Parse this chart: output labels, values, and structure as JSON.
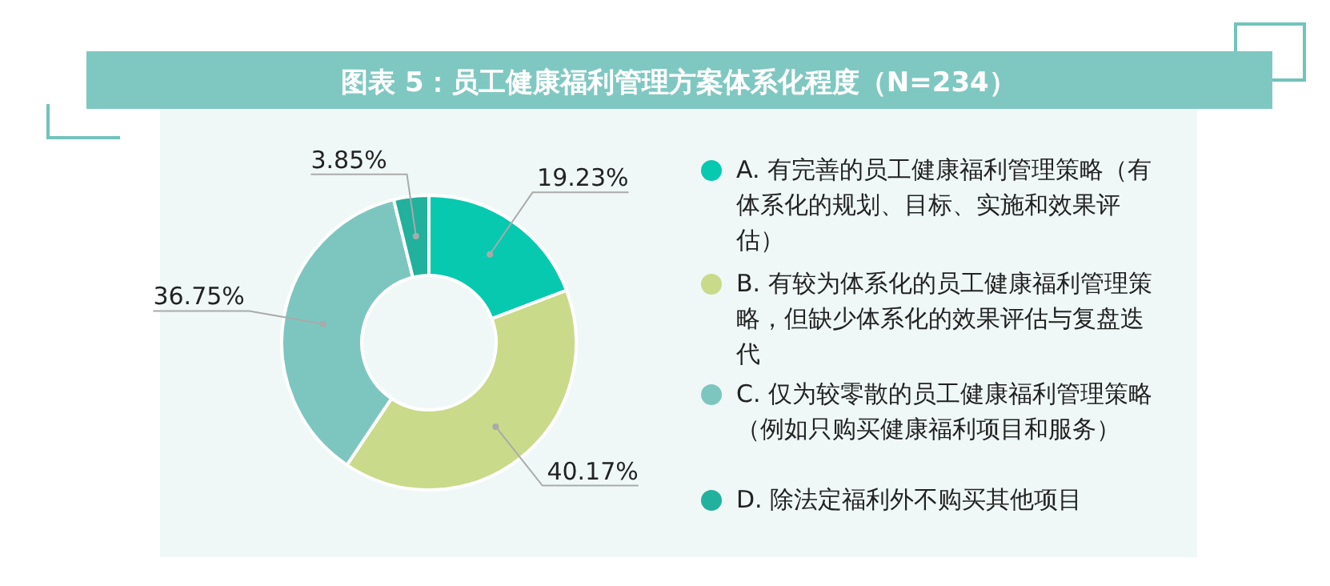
{
  "chart_data": {
    "type": "donut",
    "title": "图表 5：员工健康福利管理方案体系化程度（N=234）",
    "categories": [
      "A. 有完善的员工健康福利管理策略（有体系化的规划、目标、实施和效果评估）",
      "B. 有较为体系化的员工健康福利管理策略，但缺少体系化的效果评估与复盘迭代",
      "C. 仅为较零散的员工健康福利管理策略（例如只购买健康福利项目和服务）",
      "D. 除法定福利外不购买其他项目"
    ],
    "values": [
      19.23,
      40.17,
      36.75,
      3.85
    ],
    "colors": [
      "#07c9b0",
      "#c9da8a",
      "#7dc6c0",
      "#22b19d"
    ],
    "value_labels": [
      "19.23%",
      "40.17%",
      "36.75%",
      "3.85%"
    ],
    "legend": "right"
  }
}
